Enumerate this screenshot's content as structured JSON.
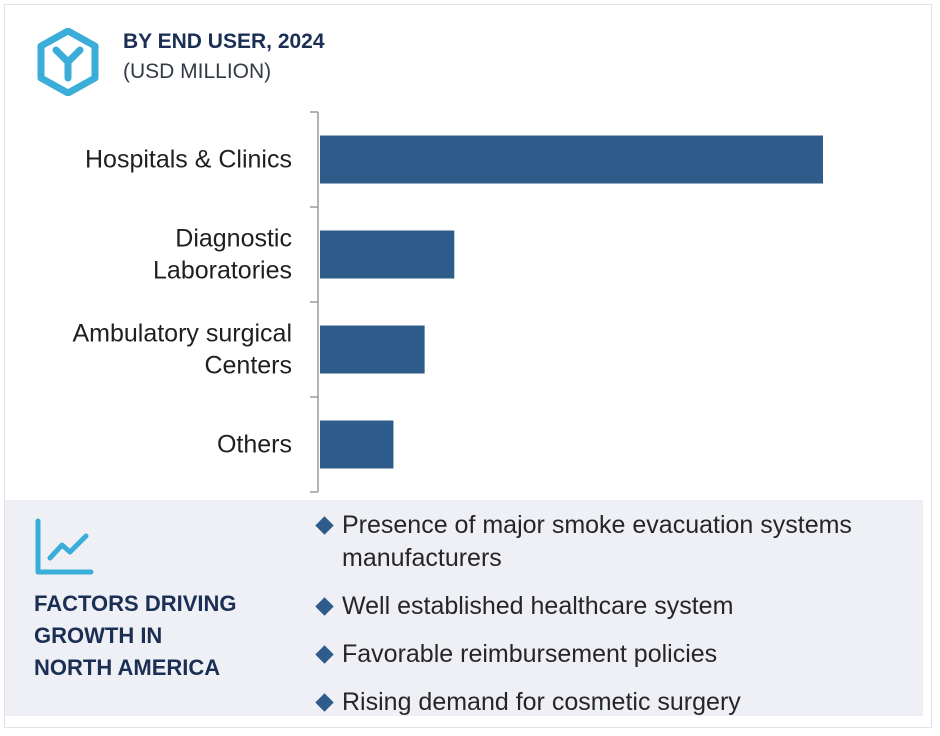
{
  "header": {
    "title": "BY END USER, 2024",
    "subtitle": "(USD MILLION)"
  },
  "colors": {
    "bar": "#2d5b8a",
    "accent": "#3aaed8",
    "heading": "#1b2f55",
    "panel": "#eef0f5"
  },
  "chart_data": {
    "type": "bar",
    "orientation": "horizontal",
    "title": "BY END USER, 2024",
    "subtitle": "(USD MILLION)",
    "categories": [
      [
        "Hospitals & Clinics"
      ],
      [
        "Diagnostic",
        "Laboratories"
      ],
      [
        "Ambulatory surgical",
        "Centers"
      ],
      [
        "Others"
      ]
    ],
    "values": [
      100,
      26.7,
      20.8,
      14.6
    ],
    "xlim": [
      0,
      100
    ],
    "xaxis_visible": false,
    "grid": false,
    "legend": "none"
  },
  "factors": {
    "icon": "trend-line-chart-icon",
    "heading": [
      "FACTORS DRIVING",
      "GROWTH IN",
      "NORTH AMERICA"
    ],
    "items": [
      "Presence of major smoke evacuation systems manufacturers",
      "Well established healthcare system",
      "Favorable reimbursement policies",
      "Rising demand for cosmetic surgery"
    ]
  }
}
